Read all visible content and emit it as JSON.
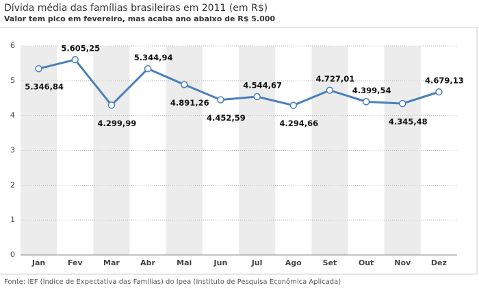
{
  "chart_data": {
    "type": "line",
    "title": "Dívida média das famílias brasileiras em 2011 (em R$)",
    "subtitle": "Valor tem pico em fevereiro, mas acaba ano abaixo de R$ 5.000",
    "categories": [
      "Jan",
      "Fev",
      "Mar",
      "Abr",
      "Mai",
      "Jun",
      "Jul",
      "Ago",
      "Set",
      "Out",
      "Nov",
      "Dez"
    ],
    "series": [
      {
        "name": "Dívida média",
        "color": "#4a7fba",
        "values": [
          5.34684,
          5.60525,
          4.29999,
          5.34494,
          4.89126,
          4.45259,
          4.54467,
          4.29466,
          4.72701,
          4.39954,
          4.34548,
          4.67913
        ],
        "value_labels": [
          "5.346,84",
          "5.605,25",
          "4.299,99",
          "5.344,94",
          "4.891,26",
          "4.452,59",
          "4.544,67",
          "4.294,66",
          "4.727,01",
          "4.399,54",
          "4.345,48",
          "4.679,13"
        ]
      }
    ],
    "ylim": [
      0,
      6
    ],
    "yticks": [
      0,
      1,
      2,
      3,
      4,
      5,
      6
    ],
    "grid": true,
    "source": "Fonte: IEF (Índice de Expectativa das Famílias) do Ipea (Instituto de Pesquisa Econômica Aplicada)"
  }
}
